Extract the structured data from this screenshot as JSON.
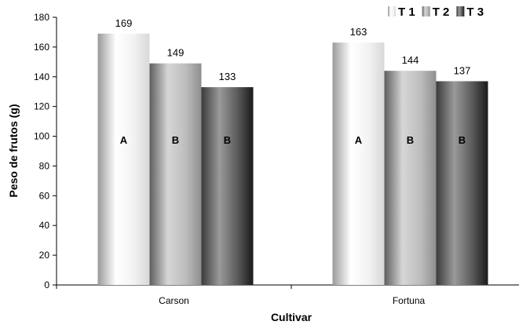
{
  "chart_data": {
    "type": "bar",
    "categories": [
      "Carson",
      "Fortuna"
    ],
    "series": [
      {
        "name": "T 1",
        "values": [
          169,
          163
        ],
        "groups": [
          "A",
          "A"
        ]
      },
      {
        "name": "T 2",
        "values": [
          149,
          144
        ],
        "groups": [
          "B",
          "B"
        ]
      },
      {
        "name": "T 3",
        "values": [
          133,
          137
        ],
        "groups": [
          "B",
          "B"
        ]
      }
    ],
    "xlabel": "Cultivar",
    "ylabel": "Peso de frutos (g)",
    "ylim": [
      0,
      180
    ],
    "yticks": [
      0,
      20,
      40,
      60,
      80,
      100,
      120,
      140,
      160,
      180
    ],
    "grid": false,
    "legend_position": "top-right",
    "series_colors": [
      "#e6e6e6",
      "#b4b4b4",
      "#6e6e6e"
    ]
  }
}
